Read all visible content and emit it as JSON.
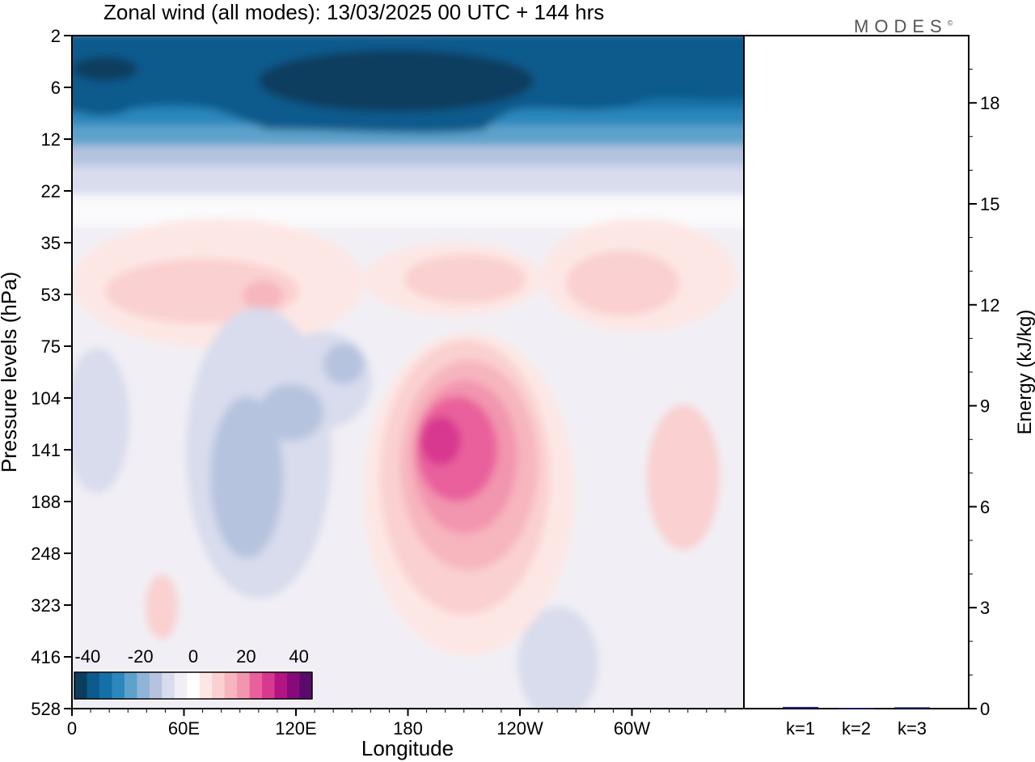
{
  "header": {
    "title": "Zonal wind (all modes):  13/03/2025  00 UTC  + 144 hrs",
    "logo": "MODES",
    "logo_mark": "©"
  },
  "chart_data": [
    {
      "type": "heatmap",
      "title": "Zonal wind (all modes):  13/03/2025  00 UTC  + 144 hrs",
      "xlabel": "Longitude",
      "ylabel": "Pressure levels (hPa)",
      "x_ticks": [
        "0",
        "60E",
        "120E",
        "180",
        "120W",
        "60W"
      ],
      "y_ticks": [
        "2",
        "6",
        "12",
        "22",
        "35",
        "53",
        "75",
        "104",
        "141",
        "188",
        "248",
        "323",
        "416",
        "528"
      ],
      "colorbar": {
        "tick_labels": [
          "-40",
          "-20",
          "0",
          "20",
          "40"
        ],
        "range": [
          -45,
          45
        ],
        "step": 5,
        "colors": [
          "#0b3d5e",
          "#0d5a8c",
          "#1371a8",
          "#2c87bc",
          "#5da2cb",
          "#8fb4d6",
          "#b6c3df",
          "#d8dced",
          "#f1eff5",
          "#ffffff",
          "#fde7e4",
          "#fad0d0",
          "#f7b5be",
          "#f295ae",
          "#e9619c",
          "#d8388f",
          "#b31383",
          "#860a7c",
          "#590b6d"
        ]
      },
      "grid": false
    },
    {
      "type": "bar",
      "categories": [
        "k=1",
        "k=2",
        "k=3"
      ],
      "values": [
        0.05,
        0.02,
        0.04
      ],
      "ylabel": "Energy (kJ/kg)",
      "y_ticks": [
        "0",
        "3",
        "6",
        "9",
        "12",
        "15",
        "18"
      ],
      "ylim": [
        0,
        20
      ],
      "bar_color": "#1f1f7a"
    }
  ]
}
